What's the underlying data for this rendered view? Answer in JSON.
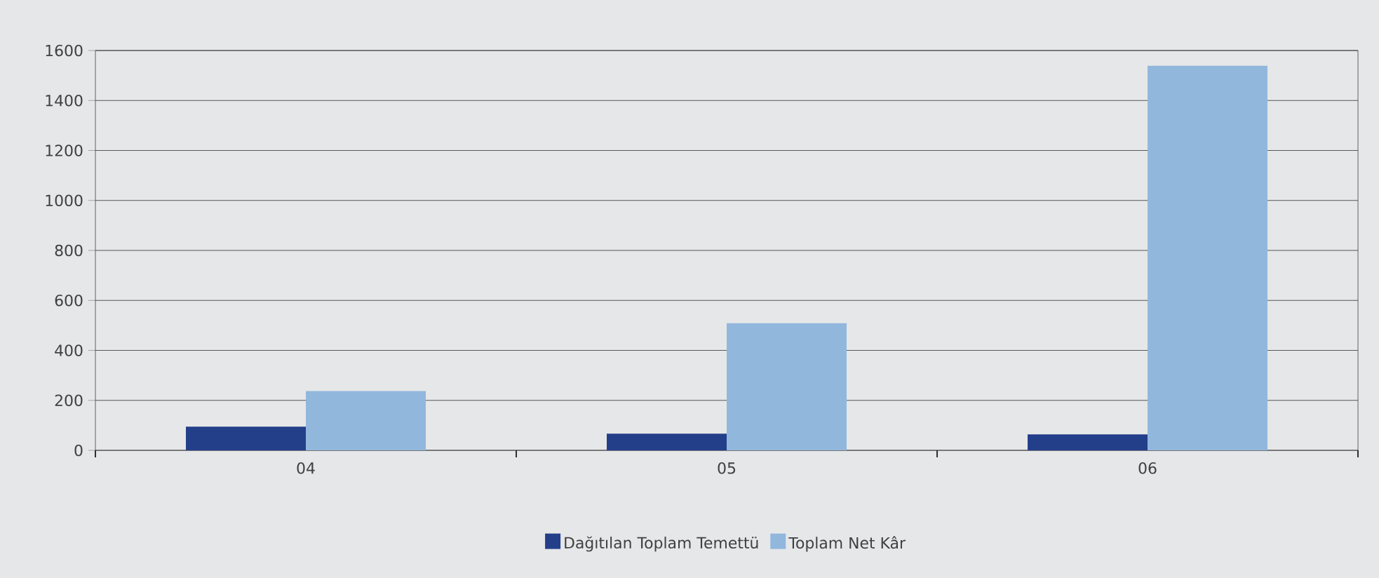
{
  "chart_data": {
    "type": "bar",
    "categories": [
      "04",
      "05",
      "06"
    ],
    "series": [
      {
        "name": "Dağıtılan Toplam Temettü",
        "color": "#233f8a",
        "values": [
          95,
          67,
          64
        ]
      },
      {
        "name": "Toplam Net Kâr",
        "color": "#92b7dd",
        "values": [
          237,
          509,
          1539
        ]
      }
    ],
    "ylim": [
      0,
      1600
    ],
    "yticks": [
      0,
      200,
      400,
      600,
      800,
      1000,
      1200,
      1400,
      1600
    ],
    "grid": "y",
    "legend": "bottom"
  }
}
